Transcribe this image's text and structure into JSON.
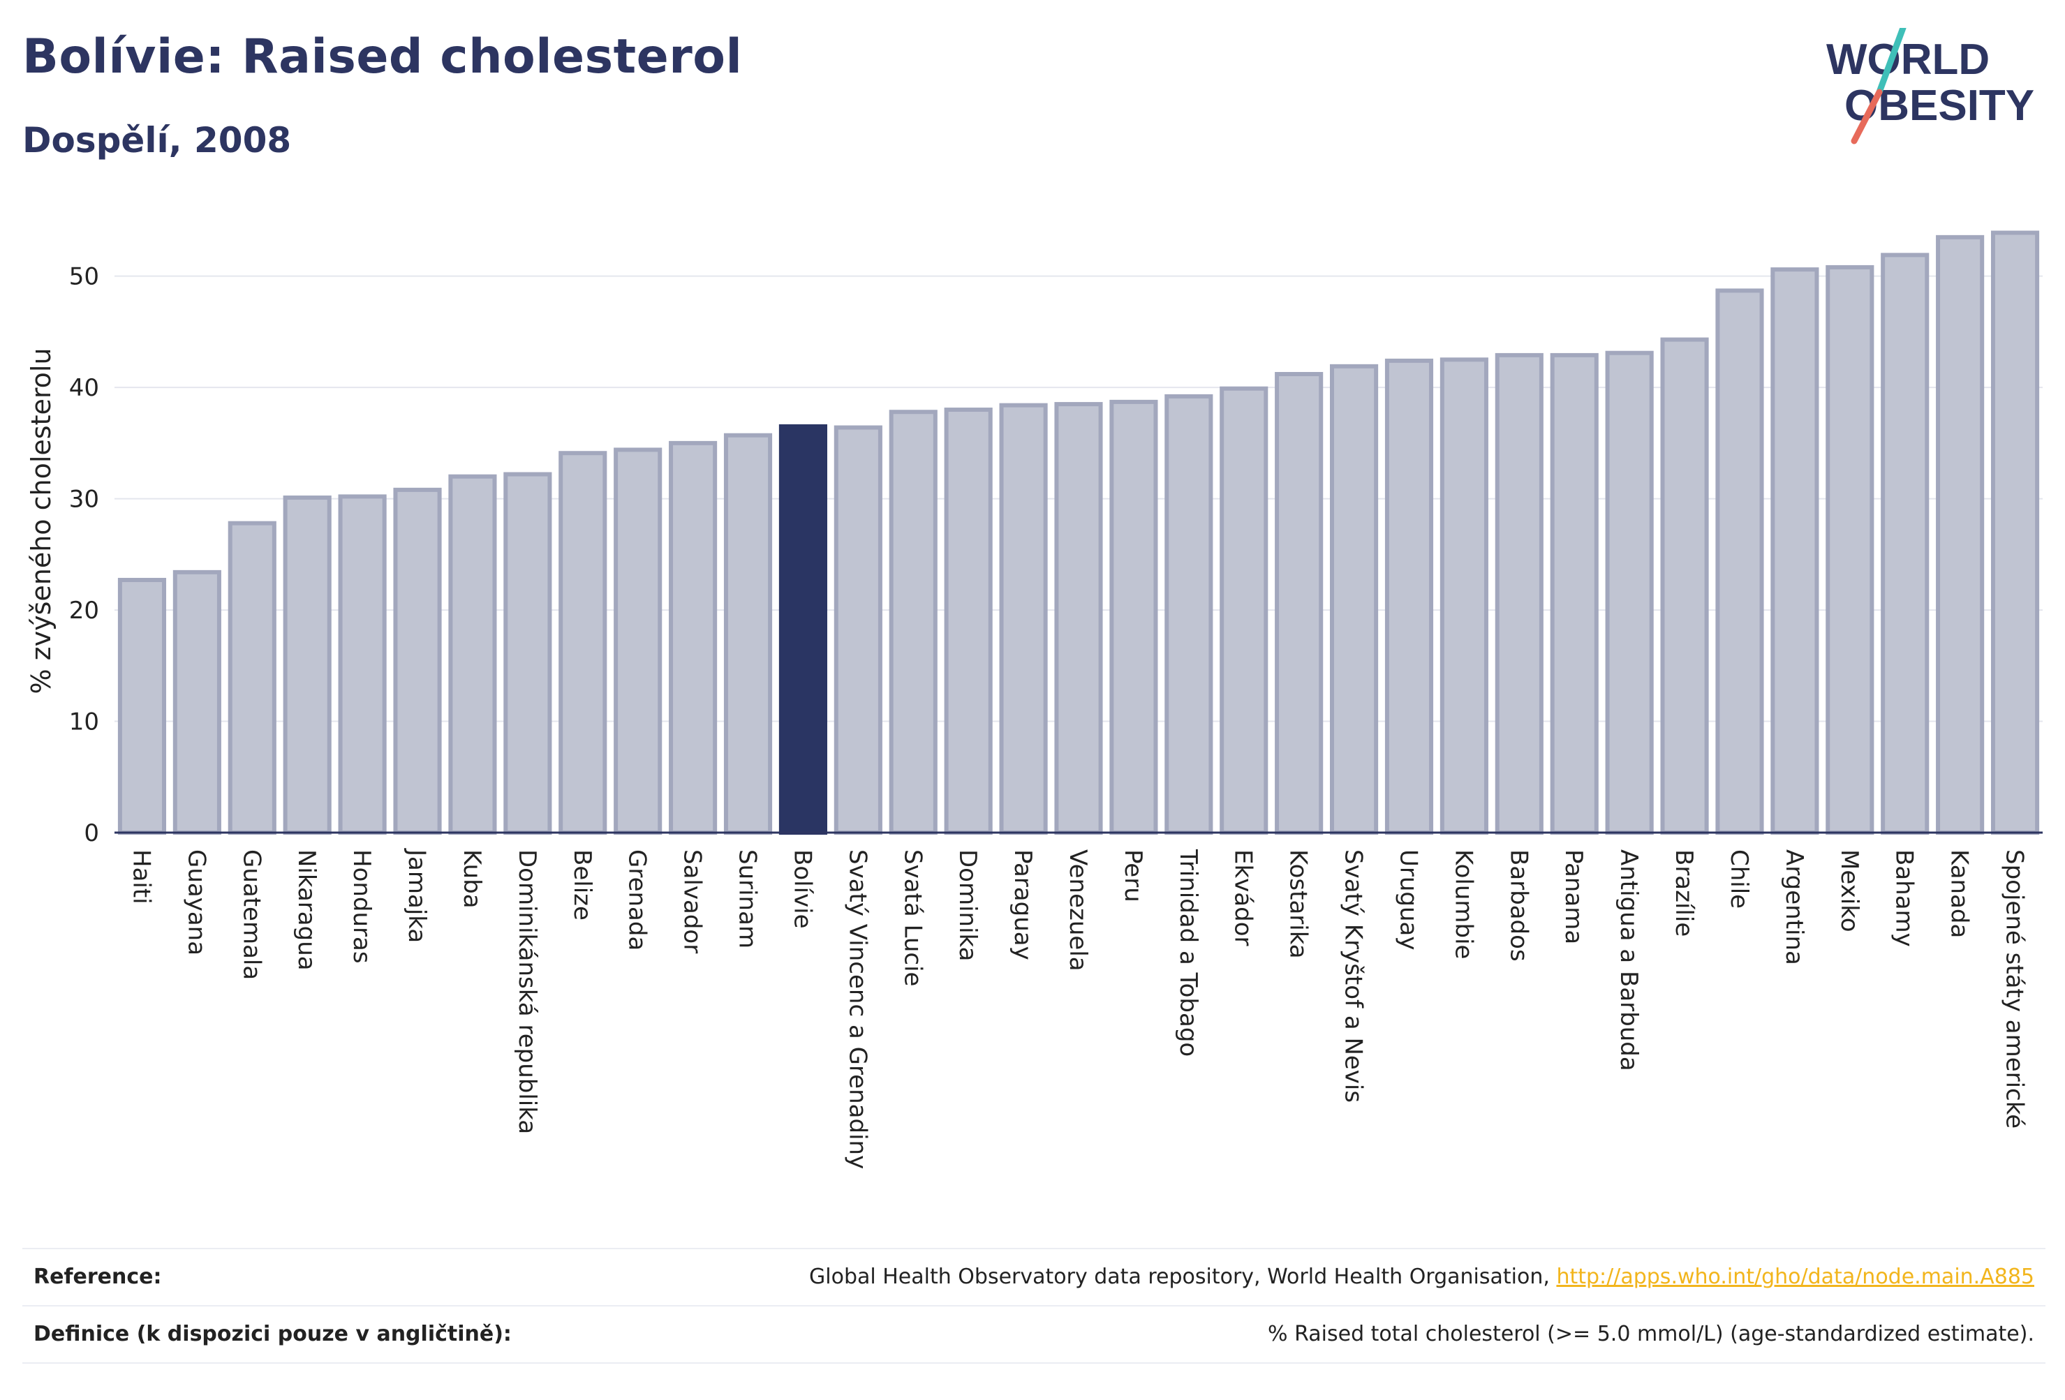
{
  "header": {
    "title": "Bolívie: Raised cholesterol",
    "subtitle": "Dospělí, 2008"
  },
  "logo": {
    "line1": "WORLD",
    "line2": "OBESITY"
  },
  "colors": {
    "bar": "#c0c4d2",
    "bar_border": "#a2a7bd",
    "highlight": "#2a3563",
    "axis": "#2d3561",
    "grid": "#e4e6ee",
    "text": "#222222",
    "brand": "#2d3561",
    "logo_teal": "#3fbfb8",
    "logo_coral": "#e76a5a"
  },
  "chart_data": {
    "type": "bar",
    "title": "Bolívie: Raised cholesterol",
    "subtitle": "Dospělí, 2008",
    "ylabel": "% zvýšeného cholesterolu",
    "xlabel": "",
    "ylim": [
      0,
      56
    ],
    "yticks": [
      0,
      10,
      20,
      30,
      40,
      50
    ],
    "grid": true,
    "highlight": "Bolívie",
    "categories": [
      "Haiti",
      "Guayana",
      "Guatemala",
      "Nikaragua",
      "Honduras",
      "Jamajka",
      "Kuba",
      "Dominikánská republika",
      "Belize",
      "Grenada",
      "Salvador",
      "Surinam",
      "Bolívie",
      "Svatý Vincenc a Grenadiny",
      "Svatá Lucie",
      "Dominika",
      "Paraguay",
      "Venezuela",
      "Peru",
      "Trinidad a Tobago",
      "Ekvádor",
      "Kostarika",
      "Svatý Kryštof a Nevis",
      "Uruguay",
      "Kolumbie",
      "Barbados",
      "Panama",
      "Antigua a Barbuda",
      "Brazílie",
      "Chile",
      "Argentina",
      "Mexiko",
      "Bahamy",
      "Kanada",
      "Spojené státy americké"
    ],
    "values": [
      22.7,
      23.4,
      27.8,
      30.1,
      30.2,
      30.8,
      32.0,
      32.2,
      34.1,
      34.4,
      35.0,
      35.7,
      36.5,
      36.4,
      37.8,
      38.0,
      38.4,
      38.5,
      38.7,
      39.2,
      39.9,
      41.2,
      41.9,
      42.4,
      42.5,
      42.9,
      42.9,
      43.1,
      44.3,
      48.7,
      50.6,
      50.8,
      51.9,
      53.5,
      53.9
    ]
  },
  "footer": {
    "reference_label": "Reference:",
    "reference_text": "Global Health Observatory data repository, World Health Organisation, ",
    "reference_link": "http://apps.who.int/gho/data/node.main.A885",
    "definition_label": "Definice (k dispozici pouze v angličtině):",
    "definition_text": "% Raised total cholesterol (>= 5.0 mmol/L) (age-standardized estimate)."
  }
}
